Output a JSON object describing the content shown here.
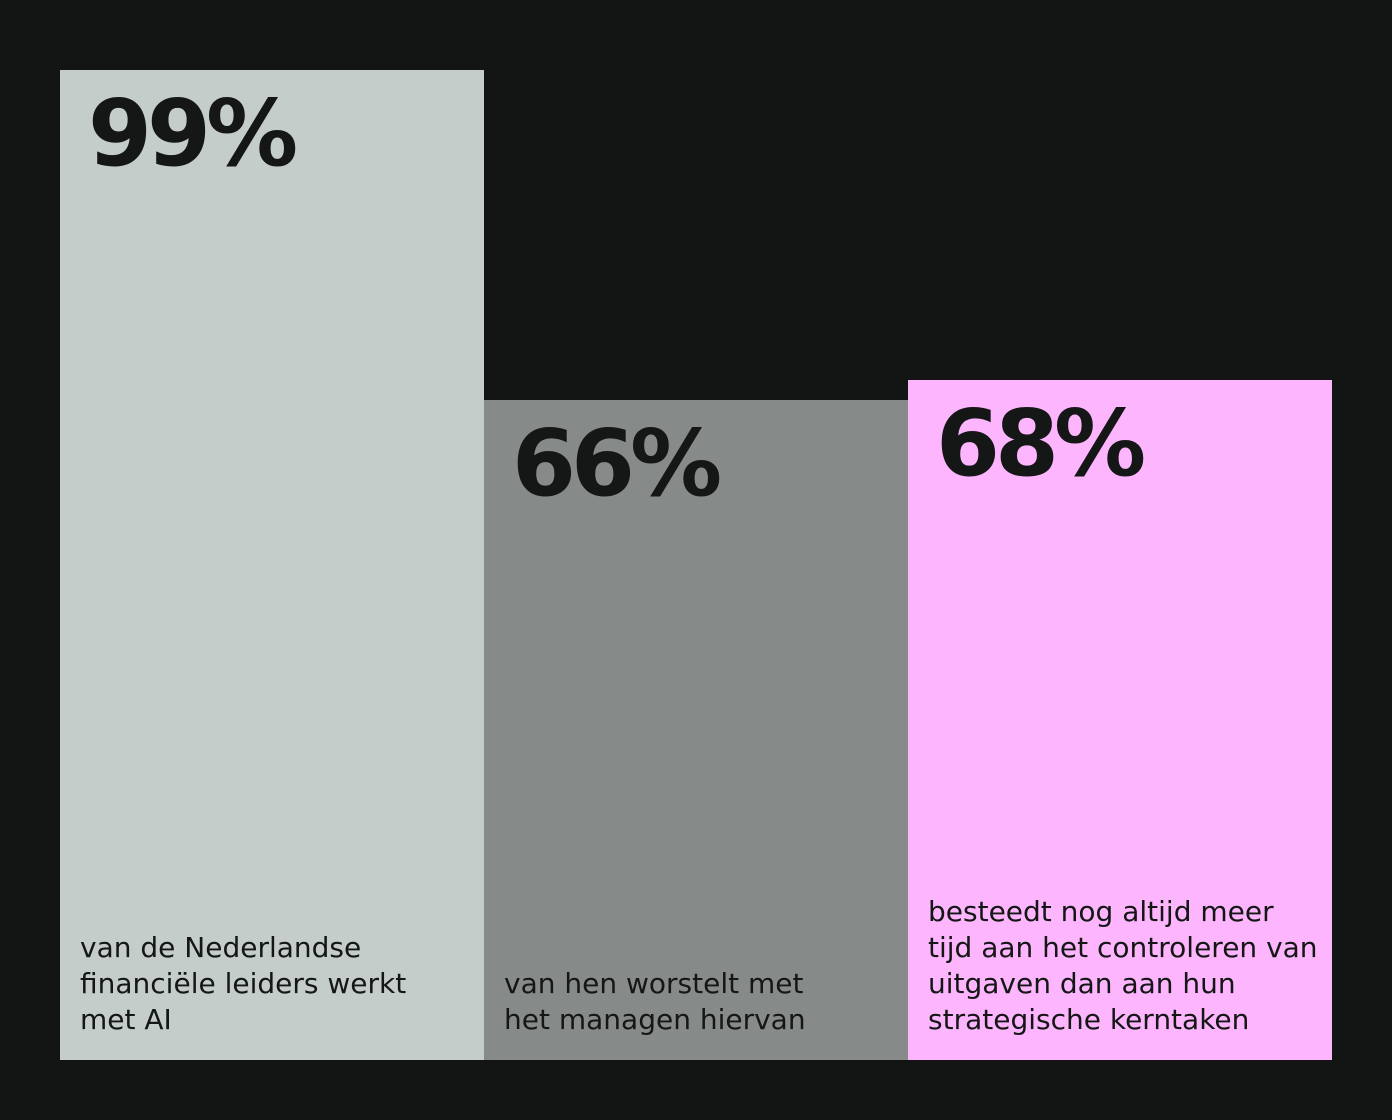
{
  "chart_data": {
    "type": "bar",
    "categories": [
      "van de Nederlandse financiële leiders werkt met AI",
      "van hen worstelt met het managen hiervan",
      "besteedt nog altijd meer tijd aan het controleren van uitgaven dan aan hun strategische kerntaken"
    ],
    "values": [
      99,
      66,
      68
    ],
    "value_labels": [
      "99%",
      "66%",
      "68%"
    ],
    "colors": [
      "#c5cdcb",
      "#868b8a",
      "#fdb6fd"
    ]
  }
}
